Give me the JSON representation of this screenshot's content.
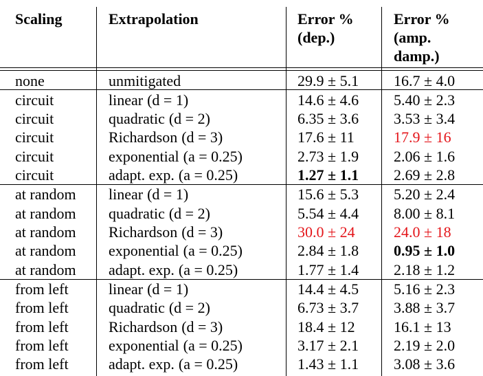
{
  "header": {
    "col1": "Scaling",
    "col2": "Extrapolation",
    "col3": [
      "Error %",
      "(dep.)"
    ],
    "col4": [
      "Error %",
      "(amp.",
      "damp.)"
    ]
  },
  "rows": [
    {
      "scaling": "none",
      "method": "unmitigated",
      "param": "",
      "dep": "29.9 ± 5.1",
      "amp": "16.7 ± 4.0",
      "dep_style": "",
      "amp_style": ""
    },
    {
      "scaling": "circuit",
      "method": "linear",
      "param": "(d = 1)",
      "dep": "14.6 ± 4.6",
      "amp": "5.40 ± 2.3",
      "dep_style": "",
      "amp_style": ""
    },
    {
      "scaling": "circuit",
      "method": "quadratic",
      "param": "(d = 2)",
      "dep": "6.35 ± 3.6",
      "amp": "3.53 ± 3.4",
      "dep_style": "",
      "amp_style": ""
    },
    {
      "scaling": "circuit",
      "method": "Richardson",
      "param": "(d = 3)",
      "dep": "17.6 ± 11",
      "amp": "17.9 ± 16",
      "dep_style": "",
      "amp_style": "red"
    },
    {
      "scaling": "circuit",
      "method": "exponential",
      "param": "(a = 0.25)",
      "dep": "2.73 ± 1.9",
      "amp": "2.06 ± 1.6",
      "dep_style": "",
      "amp_style": ""
    },
    {
      "scaling": "circuit",
      "method": "adapt. exp.",
      "param": "(a = 0.25)",
      "dep": "1.27 ± 1.1",
      "amp": "2.69 ± 2.8",
      "dep_style": "bold",
      "amp_style": ""
    },
    {
      "scaling": "at random",
      "method": "linear",
      "param": "(d = 1)",
      "dep": "15.6 ± 5.3",
      "amp": "5.20 ± 2.4",
      "dep_style": "",
      "amp_style": ""
    },
    {
      "scaling": "at random",
      "method": "quadratic",
      "param": "(d = 2)",
      "dep": "5.54 ± 4.4",
      "amp": "8.00 ± 8.1",
      "dep_style": "",
      "amp_style": ""
    },
    {
      "scaling": "at random",
      "method": "Richardson",
      "param": "(d = 3)",
      "dep": "30.0 ± 24",
      "amp": "24.0 ± 18",
      "dep_style": "red",
      "amp_style": "red"
    },
    {
      "scaling": "at random",
      "method": "exponential",
      "param": "(a = 0.25)",
      "dep": "2.84 ± 1.8",
      "amp": "0.95 ± 1.0",
      "dep_style": "",
      "amp_style": "bold"
    },
    {
      "scaling": "at random",
      "method": "adapt. exp.",
      "param": "(a = 0.25)",
      "dep": "1.77 ± 1.4",
      "amp": "2.18 ± 1.2",
      "dep_style": "",
      "amp_style": ""
    },
    {
      "scaling": "from left",
      "method": "linear",
      "param": "(d = 1)",
      "dep": "14.4 ± 4.5",
      "amp": "5.16 ± 2.3",
      "dep_style": "",
      "amp_style": ""
    },
    {
      "scaling": "from left",
      "method": "quadratic",
      "param": "(d = 2)",
      "dep": "6.73 ± 3.7",
      "amp": "3.88 ± 3.7",
      "dep_style": "",
      "amp_style": ""
    },
    {
      "scaling": "from left",
      "method": "Richardson",
      "param": "(d = 3)",
      "dep": "18.4 ± 12",
      "amp": "16.1 ± 13",
      "dep_style": "",
      "amp_style": ""
    },
    {
      "scaling": "from left",
      "method": "exponential",
      "param": "(a = 0.25)",
      "dep": "3.17 ± 2.1",
      "amp": "2.19 ± 2.0",
      "dep_style": "",
      "amp_style": ""
    },
    {
      "scaling": "from left",
      "method": "adapt. exp.",
      "param": "(a = 0.25)",
      "dep": "1.43 ± 1.1",
      "amp": "3.08 ± 3.6",
      "dep_style": "",
      "amp_style": ""
    }
  ]
}
